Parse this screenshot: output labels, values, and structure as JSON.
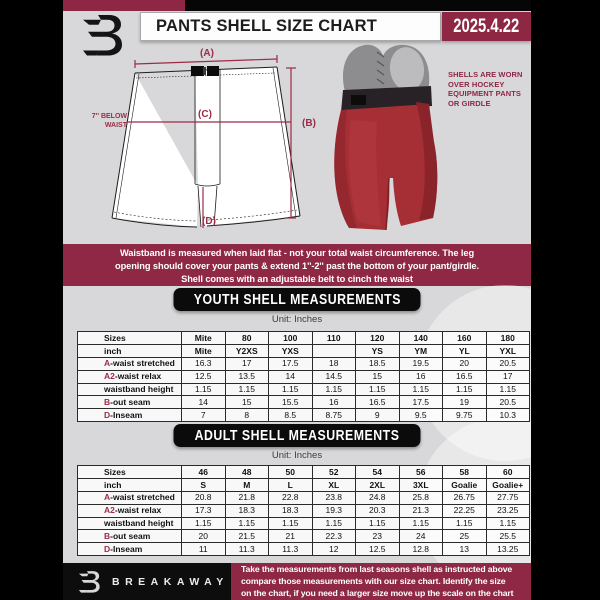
{
  "colors": {
    "accent_maroon": "#8e2845",
    "doc_bg": "#d8d8da",
    "black_bar": "#0d0d0d",
    "shell_red": "#a52f35",
    "girdle_gray": "#8d8d90"
  },
  "header": {
    "title": "PANTS SHELL SIZE CHART",
    "date": "2025.4.22"
  },
  "diagram": {
    "label_a": "(A)",
    "label_b": "(B)",
    "label_c": "(C)",
    "label_d": "(D)",
    "waist_note": [
      "7'' BELOW",
      "WAIST"
    ],
    "photo_note": [
      "SHELLS ARE WORN",
      "OVER HOCKEY",
      "EQUIPMENT PANTS",
      "OR GIRDLE"
    ]
  },
  "banner": {
    "lines": [
      "Waistband is measured when laid flat - not your total waist circumference. The leg",
      "opening should cover your pants & extend 1''-2'' past the bottom of your pant/girdle.",
      "Shell comes with an adjustable belt to cinch the waist"
    ]
  },
  "youth": {
    "heading": "YOUTH SHELL MEASUREMENTS",
    "unit": "Unit: Inches",
    "rows": [
      {
        "prefix": "",
        "label": "Sizes",
        "header": true,
        "values": [
          "Mite",
          "80",
          "100",
          "110",
          "120",
          "140",
          "160",
          "180"
        ]
      },
      {
        "prefix": "",
        "label": "inch",
        "header": true,
        "values": [
          "Mite",
          "Y2XS",
          "YXS",
          "",
          "YS",
          "YM",
          "YL",
          "YXL"
        ]
      },
      {
        "prefix": "A",
        "label": "-waist stretched",
        "values": [
          "16.3",
          "17",
          "17.5",
          "18",
          "18.5",
          "19.5",
          "20",
          "20.5"
        ]
      },
      {
        "prefix": "A2",
        "label": "-waist relax",
        "values": [
          "12.5",
          "13.5",
          "14",
          "14.5",
          "15",
          "16",
          "16.5",
          "17"
        ]
      },
      {
        "prefix": "",
        "label": "waistband height",
        "values": [
          "1.15",
          "1.15",
          "1.15",
          "1.15",
          "1.15",
          "1.15",
          "1.15",
          "1.15"
        ]
      },
      {
        "prefix": "B",
        "label": "-out seam",
        "values": [
          "14",
          "15",
          "15.5",
          "16",
          "16.5",
          "17.5",
          "19",
          "20.5"
        ]
      },
      {
        "prefix": "D",
        "label": "-Inseam",
        "values": [
          "7",
          "8",
          "8.5",
          "8.75",
          "9",
          "9.5",
          "9.75",
          "10.3"
        ]
      }
    ]
  },
  "adult": {
    "heading": "ADULT SHELL MEASUREMENTS",
    "unit": "Unit: Inches",
    "rows": [
      {
        "prefix": "",
        "label": "Sizes",
        "header": true,
        "values": [
          "46",
          "48",
          "50",
          "52",
          "54",
          "56",
          "58",
          "60"
        ]
      },
      {
        "prefix": "",
        "label": "inch",
        "header": true,
        "values": [
          "S",
          "M",
          "L",
          "XL",
          "2XL",
          "3XL",
          "Goalie",
          "Goalie+"
        ]
      },
      {
        "prefix": "A",
        "label": "-waist stretched",
        "values": [
          "20.8",
          "21.8",
          "22.8",
          "23.8",
          "24.8",
          "25.8",
          "26.75",
          "27.75"
        ]
      },
      {
        "prefix": "A2",
        "label": "-waist relax",
        "values": [
          "17.3",
          "18.3",
          "18.3",
          "19.3",
          "20.3",
          "21.3",
          "22.25",
          "23.25"
        ]
      },
      {
        "prefix": "",
        "label": "waistband height",
        "values": [
          "1.15",
          "1.15",
          "1.15",
          "1.15",
          "1.15",
          "1.15",
          "1.15",
          "1.15"
        ]
      },
      {
        "prefix": "B",
        "label": "-out seam",
        "values": [
          "20",
          "21.5",
          "21",
          "22.3",
          "23",
          "24",
          "25",
          "25.5"
        ]
      },
      {
        "prefix": "D",
        "label": "-Inseam",
        "values": [
          "11",
          "11.3",
          "11.3",
          "12",
          "12.5",
          "12.8",
          "13",
          "13.25"
        ]
      }
    ]
  },
  "footer": {
    "brand": "BREAKAWAY",
    "note_lines": [
      "Take the measurements from last seasons shell as instructed above",
      "compare those measurements  with our size chart. Identify the size",
      "on the chart, if you need a larger size move up the scale on the chart"
    ]
  }
}
